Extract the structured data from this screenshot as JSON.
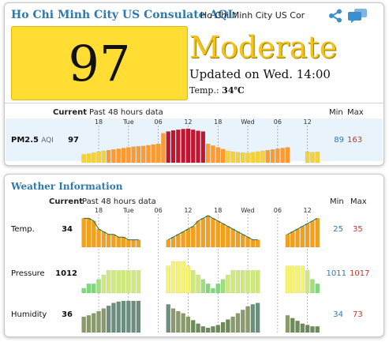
{
  "header": {
    "title": "Ho Chi Minh City US Consulate AQI:",
    "station_value": "Ho Chi Minh City US Consulate",
    "icons": [
      "share-icon",
      "chat-icon"
    ]
  },
  "aqi": {
    "value": "97",
    "level": "Moderate",
    "updated": "Updated on Wed. 14:00",
    "temp_label": "Temp.:",
    "temp_value": "34℃",
    "colors": {
      "box": "#ffdd33",
      "level_text": "#f2c318"
    }
  },
  "aqi_table": {
    "current_label": "Current",
    "past_label": "Past 48 hours data",
    "min_label": "Min",
    "max_label": "Max",
    "time_ticks": [
      "18",
      "Tue",
      "06",
      "12",
      "18",
      "Wed",
      "06",
      "12"
    ],
    "rows": [
      {
        "label": "PM2.5",
        "unit": "AQI",
        "current": "97",
        "min": "89",
        "max": "163",
        "values": [
          90,
          92,
          95,
          98,
          100,
          102,
          104,
          106,
          108,
          110,
          112,
          113,
          114,
          116,
          118,
          120,
          150,
          155,
          158,
          160,
          162,
          163,
          160,
          157,
          155,
          120,
          115,
          110,
          105,
          100,
          98,
          96,
          95,
          94,
          96,
          98,
          100,
          102,
          104,
          106,
          108,
          110,
          null,
          null,
          null,
          98,
          96,
          97
        ]
      }
    ]
  },
  "weather": {
    "title": "Weather Information",
    "current_label": "Current",
    "past_label": "Past 48 hours data",
    "min_label": "Min",
    "max_label": "Max",
    "time_ticks": [
      "18",
      "Tue",
      "06",
      "12",
      "18",
      "Wed",
      "06",
      "12"
    ],
    "rows": [
      {
        "label": "Temp.",
        "current": "34",
        "min": "25",
        "max": "35",
        "values": [
          34,
          34,
          33,
          30,
          29,
          28,
          28,
          27,
          27,
          26,
          26,
          26,
          null,
          null,
          null,
          null,
          null,
          26,
          27,
          28,
          29,
          30,
          31,
          33,
          34,
          35,
          34,
          33,
          32,
          31,
          30,
          29,
          28,
          27,
          26,
          26,
          null,
          null,
          null,
          null,
          null,
          28,
          29,
          30,
          31,
          32,
          33,
          34
        ]
      },
      {
        "label": "Pressure",
        "current": "1012",
        "min": "1011",
        "max": "1017",
        "values": [
          1011,
          1012,
          1012,
          1013,
          1014,
          1015,
          1015,
          1015,
          1015,
          1015,
          1015,
          1015,
          null,
          null,
          null,
          null,
          null,
          1016,
          1017,
          1017,
          1017,
          1016,
          1015,
          1014,
          1013,
          1012,
          1011,
          1012,
          1013,
          1014,
          1015,
          1015,
          1015,
          1015,
          1015,
          1015,
          null,
          null,
          null,
          null,
          null,
          1016,
          1016,
          1016,
          1016,
          1015,
          1013,
          1012
        ]
      },
      {
        "label": "Humidity",
        "current": "36",
        "min": "34",
        "max": "73",
        "values": [
          50,
          52,
          55,
          58,
          62,
          66,
          70,
          72,
          73,
          73,
          73,
          73,
          null,
          null,
          null,
          null,
          null,
          68,
          62,
          58,
          55,
          50,
          45,
          40,
          36,
          34,
          36,
          38,
          42,
          46,
          50,
          55,
          60,
          65,
          68,
          70,
          null,
          null,
          null,
          null,
          null,
          52,
          48,
          44,
          40,
          38,
          36,
          36
        ]
      }
    ]
  }
}
